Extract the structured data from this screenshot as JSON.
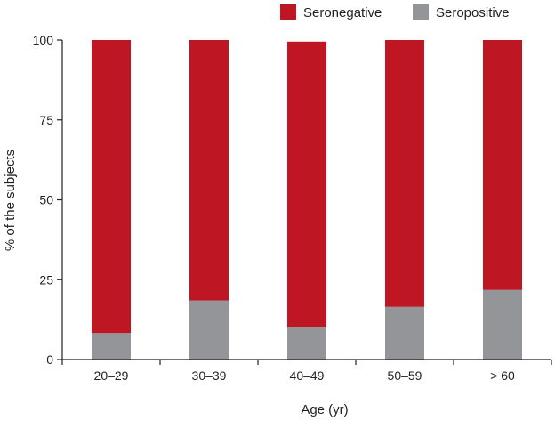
{
  "chart_data": {
    "type": "bar",
    "stacked": true,
    "categories": [
      "20–29",
      "30–39",
      "40–49",
      "50–59",
      "> 60"
    ],
    "series": [
      {
        "name": "Seropositive",
        "color": "#939598",
        "values": [
          8.3,
          18.5,
          10.3,
          16.5,
          21.8
        ]
      },
      {
        "name": "Seronegative",
        "color": "#be1622",
        "values": [
          91.7,
          81.5,
          89.2,
          83.5,
          78.2
        ]
      }
    ],
    "xlabel": "Age (yr)",
    "ylabel": "% of the subjects",
    "ylim": [
      0,
      100
    ],
    "yticks": [
      0,
      25,
      50,
      75,
      100
    ],
    "legend_position": "top-right",
    "grid": false
  }
}
